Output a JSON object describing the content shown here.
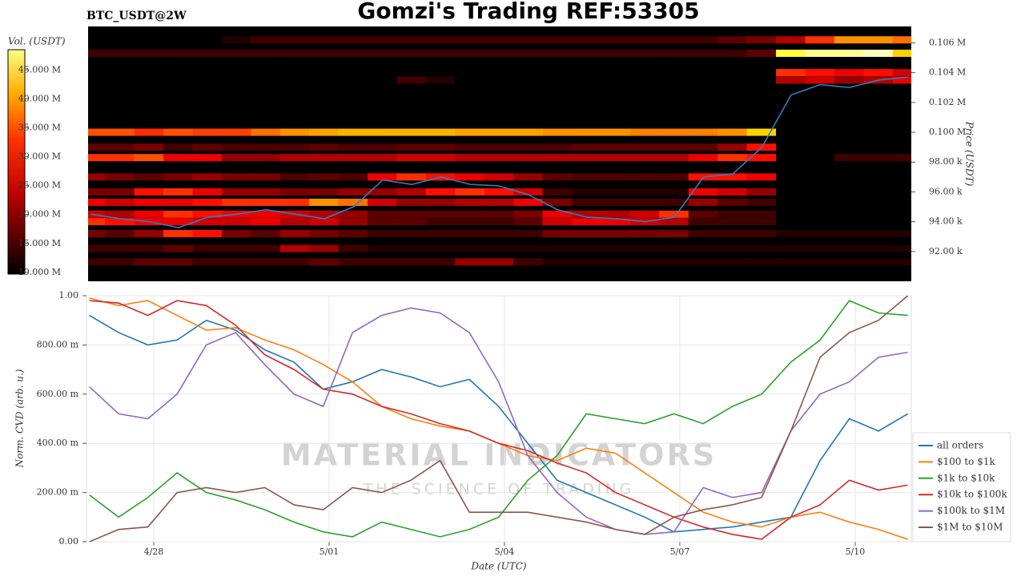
{
  "header": {
    "title": "Gomzi's Trading REF:53305",
    "symbol": "BTC_USDT@2W"
  },
  "watermark": {
    "title": "MATERIAL INDICATORS",
    "subtitle": "THE SCIENCE OF TRADING"
  },
  "chart_data": [
    {
      "type": "heatmap",
      "y_label": "Price (USDT)",
      "colorbar_label": "Vol. (USDT)",
      "x": [
        116.9,
        117.4,
        117.9,
        118.4,
        118.9,
        119.4,
        119.9,
        120.4,
        120.9,
        121.4,
        121.9,
        122.4,
        122.9,
        123.4,
        123.9,
        124.4,
        124.9,
        125.4,
        125.9,
        126.4,
        126.9,
        127.4,
        127.9,
        128.4,
        128.9,
        129.4,
        129.9,
        130.4,
        130.9
      ],
      "xlim": [
        116.85,
        130.96
      ],
      "ylim": [
        90000,
        107100
      ],
      "yticks": [
        {
          "value": 92000,
          "label": "92.00 k"
        },
        {
          "value": 94000,
          "label": "94.00 k"
        },
        {
          "value": 96000,
          "label": "96.00 k"
        },
        {
          "value": 98000,
          "label": "98.00 k"
        },
        {
          "value": 100000,
          "label": "0.100 M"
        },
        {
          "value": 102000,
          "label": "0.102 M"
        },
        {
          "value": 104000,
          "label": "0.104 M"
        },
        {
          "value": 106000,
          "label": "0.106 M"
        }
      ],
      "zlim": [
        9.7,
        48.5
      ],
      "zticks": [
        {
          "value": 10,
          "label": "10.000 M"
        },
        {
          "value": 15,
          "label": "15.000 M"
        },
        {
          "value": 20,
          "label": "20.000 M"
        },
        {
          "value": 25,
          "label": "25.000 M"
        },
        {
          "value": 30,
          "label": "30.000 M"
        },
        {
          "value": 35,
          "label": "35.000 M"
        },
        {
          "value": 40,
          "label": "40.000 M"
        },
        {
          "value": 45,
          "label": "45.000 M"
        }
      ],
      "levels": [
        106200,
        105300,
        104000,
        103500,
        100000,
        99000,
        98300,
        97000,
        96000,
        95300,
        94500,
        94000,
        93200,
        92200,
        91300
      ],
      "z": [
        [
          8,
          8,
          8,
          8,
          8,
          12,
          14,
          14,
          14,
          14,
          14,
          14,
          14,
          14,
          14,
          14,
          14,
          14,
          14,
          14,
          14,
          14,
          16,
          18,
          22,
          30,
          36,
          36,
          34
        ],
        [
          14,
          14,
          14,
          14,
          14,
          14,
          14,
          14,
          14,
          14,
          14,
          14,
          14,
          14,
          14,
          14,
          14,
          14,
          14,
          14,
          14,
          14,
          14,
          16,
          44,
          46,
          46,
          47,
          40
        ],
        [
          5,
          5,
          5,
          5,
          5,
          5,
          5,
          5,
          5,
          5,
          5,
          5,
          5,
          5,
          5,
          5,
          5,
          5,
          5,
          5,
          5,
          5,
          5,
          5,
          30,
          28,
          26,
          28,
          24
        ],
        [
          5,
          5,
          5,
          5,
          5,
          5,
          5,
          5,
          5,
          5,
          5,
          14,
          12,
          5,
          5,
          5,
          5,
          5,
          5,
          5,
          5,
          5,
          5,
          5,
          22,
          24,
          20,
          22,
          26
        ],
        [
          32,
          32,
          30,
          32,
          31,
          31,
          34,
          36,
          37,
          38,
          38,
          38,
          38,
          37,
          37,
          37,
          36,
          36,
          36,
          35,
          35,
          35,
          36,
          40,
          5,
          5,
          5,
          5,
          5
        ],
        [
          16,
          16,
          18,
          14,
          16,
          15,
          15,
          15,
          16,
          15,
          15,
          16,
          16,
          15,
          15,
          15,
          15,
          16,
          16,
          16,
          16,
          16,
          20,
          28,
          5,
          5,
          5,
          5,
          5
        ],
        [
          30,
          30,
          32,
          26,
          26,
          20,
          20,
          22,
          22,
          22,
          22,
          24,
          24,
          22,
          22,
          22,
          22,
          22,
          22,
          22,
          22,
          26,
          30,
          28,
          5,
          5,
          14,
          14,
          14
        ],
        [
          20,
          18,
          16,
          18,
          20,
          18,
          18,
          15,
          16,
          15,
          26,
          30,
          28,
          26,
          24,
          20,
          16,
          15,
          15,
          15,
          15,
          28,
          28,
          26,
          5,
          5,
          5,
          5,
          5
        ],
        [
          18,
          18,
          28,
          30,
          26,
          20,
          20,
          18,
          18,
          20,
          20,
          22,
          28,
          30,
          28,
          24,
          14,
          12,
          12,
          12,
          12,
          26,
          24,
          20,
          5,
          5,
          5,
          5,
          5
        ],
        [
          26,
          24,
          26,
          26,
          28,
          30,
          30,
          30,
          36,
          34,
          24,
          20,
          20,
          22,
          22,
          26,
          18,
          14,
          14,
          14,
          14,
          20,
          16,
          14,
          5,
          5,
          5,
          5,
          5
        ],
        [
          24,
          22,
          26,
          30,
          28,
          26,
          26,
          24,
          22,
          20,
          16,
          16,
          16,
          16,
          16,
          18,
          26,
          22,
          22,
          24,
          30,
          16,
          14,
          14,
          5,
          5,
          5,
          5,
          5
        ],
        [
          30,
          28,
          26,
          26,
          24,
          24,
          26,
          22,
          24,
          20,
          16,
          16,
          14,
          14,
          14,
          16,
          24,
          26,
          26,
          24,
          22,
          14,
          14,
          14,
          5,
          5,
          5,
          5,
          5
        ],
        [
          18,
          16,
          20,
          30,
          28,
          18,
          16,
          20,
          18,
          16,
          14,
          14,
          14,
          14,
          14,
          14,
          18,
          18,
          18,
          18,
          18,
          14,
          14,
          14,
          12,
          12,
          12,
          12,
          12
        ],
        [
          14,
          14,
          14,
          16,
          14,
          14,
          14,
          22,
          20,
          14,
          12,
          12,
          12,
          12,
          12,
          12,
          12,
          12,
          12,
          12,
          12,
          12,
          12,
          12,
          12,
          12,
          12,
          12,
          12
        ],
        [
          14,
          14,
          16,
          16,
          14,
          14,
          14,
          14,
          16,
          14,
          14,
          14,
          14,
          20,
          20,
          14,
          12,
          12,
          12,
          12,
          12,
          12,
          12,
          12,
          12,
          12,
          12,
          12,
          12
        ]
      ],
      "price": [
        94500,
        94200,
        94000,
        93600,
        94300,
        94500,
        94800,
        94500,
        94200,
        95000,
        96800,
        96500,
        97000,
        96500,
        96400,
        95800,
        94800,
        94300,
        94200,
        94000,
        94300,
        97000,
        97200,
        99000,
        102500,
        103200,
        103000,
        103500,
        103700
      ],
      "price_color": "#2f7fc1"
    },
    {
      "type": "line",
      "x_label": "Date (UTC)",
      "y_label": "Norm. CVD (arb. u.)",
      "x": [
        116.9,
        117.4,
        117.9,
        118.4,
        118.9,
        119.4,
        119.9,
        120.4,
        120.9,
        121.4,
        121.9,
        122.4,
        122.9,
        123.4,
        123.9,
        124.4,
        124.9,
        125.4,
        125.9,
        126.4,
        126.9,
        127.4,
        127.9,
        128.4,
        128.9,
        129.4,
        129.9,
        130.4,
        130.9
      ],
      "xlim": [
        116.85,
        130.96
      ],
      "xticks": [
        {
          "value": 118,
          "label": "4/28"
        },
        {
          "value": 121,
          "label": "5/01"
        },
        {
          "value": 124,
          "label": "5/04"
        },
        {
          "value": 127,
          "label": "5/07"
        },
        {
          "value": 130,
          "label": "5/10"
        }
      ],
      "ylim": [
        0,
        1
      ],
      "yticks": [
        {
          "value": 0,
          "label": "0.00"
        },
        {
          "value": 0.2,
          "label": "200.00 m"
        },
        {
          "value": 0.4,
          "label": "400.00 m"
        },
        {
          "value": 0.6,
          "label": "600.00 m"
        },
        {
          "value": 0.8,
          "label": "800.00 m"
        },
        {
          "value": 1,
          "label": "1.00"
        }
      ],
      "grid": true,
      "legend": "lower-right",
      "series": [
        {
          "name": "all orders",
          "color": "#1f77b4",
          "values": [
            0.92,
            0.85,
            0.8,
            0.82,
            0.9,
            0.86,
            0.78,
            0.73,
            0.62,
            0.65,
            0.7,
            0.67,
            0.63,
            0.66,
            0.55,
            0.4,
            0.25,
            0.2,
            0.15,
            0.1,
            0.04,
            0.05,
            0.06,
            0.08,
            0.1,
            0.33,
            0.5,
            0.45,
            0.52
          ]
        },
        {
          "name": "$100 to $1k",
          "color": "#ff7f0e",
          "values": [
            0.99,
            0.96,
            0.98,
            0.92,
            0.86,
            0.87,
            0.82,
            0.78,
            0.72,
            0.65,
            0.55,
            0.5,
            0.47,
            0.45,
            0.4,
            0.35,
            0.33,
            0.38,
            0.36,
            0.28,
            0.2,
            0.12,
            0.08,
            0.06,
            0.1,
            0.12,
            0.08,
            0.05,
            0.01
          ]
        },
        {
          "name": "$1k to $10k",
          "color": "#2ca02c",
          "values": [
            0.19,
            0.1,
            0.18,
            0.28,
            0.2,
            0.17,
            0.13,
            0.08,
            0.04,
            0.02,
            0.08,
            0.05,
            0.02,
            0.05,
            0.1,
            0.25,
            0.35,
            0.52,
            0.5,
            0.48,
            0.52,
            0.48,
            0.55,
            0.6,
            0.73,
            0.82,
            0.98,
            0.93,
            0.92
          ]
        },
        {
          "name": "$10k to $100k",
          "color": "#d62728",
          "values": [
            0.98,
            0.97,
            0.92,
            0.98,
            0.96,
            0.88,
            0.76,
            0.7,
            0.62,
            0.6,
            0.55,
            0.52,
            0.48,
            0.45,
            0.4,
            0.37,
            0.32,
            0.28,
            0.2,
            0.15,
            0.1,
            0.06,
            0.03,
            0.01,
            0.1,
            0.15,
            0.25,
            0.21,
            0.23
          ]
        },
        {
          "name": "$100k to $1M",
          "color": "#9467bd",
          "values": [
            0.63,
            0.52,
            0.5,
            0.6,
            0.8,
            0.85,
            0.72,
            0.6,
            0.55,
            0.85,
            0.92,
            0.95,
            0.93,
            0.85,
            0.65,
            0.35,
            0.2,
            0.1,
            0.05,
            0.03,
            0.04,
            0.22,
            0.18,
            0.2,
            0.45,
            0.6,
            0.65,
            0.75,
            0.77
          ]
        },
        {
          "name": "$1M to $10M",
          "color": "#8c564b",
          "values": [
            0.0,
            0.05,
            0.06,
            0.2,
            0.22,
            0.2,
            0.22,
            0.15,
            0.13,
            0.22,
            0.2,
            0.25,
            0.33,
            0.12,
            0.12,
            0.12,
            0.1,
            0.08,
            0.05,
            0.03,
            0.1,
            0.13,
            0.15,
            0.18,
            0.45,
            0.75,
            0.85,
            0.9,
            1.0
          ]
        }
      ]
    }
  ]
}
